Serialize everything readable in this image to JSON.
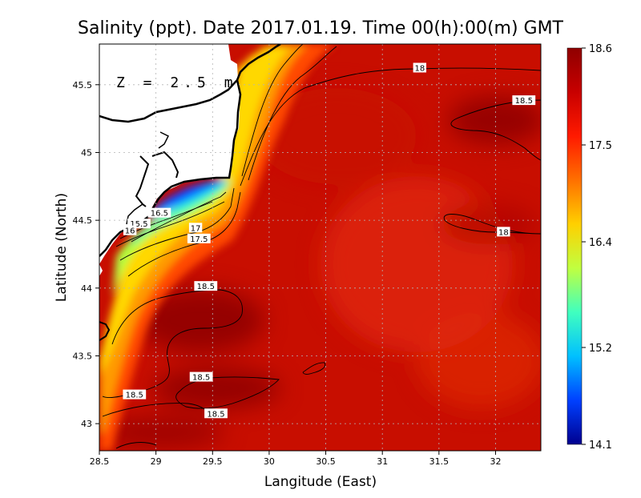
{
  "chart_data": {
    "type": "heatmap",
    "title": "Salinity (ppt). Date 2017.01.19. Time 00(h):00(m) GMT",
    "xlabel": "Langitude (East)",
    "ylabel": "Latitude (North)",
    "annotation": "Z = 2.5 m",
    "xlim": [
      28.5,
      32.4
    ],
    "ylim": [
      42.8,
      45.8
    ],
    "xticks": [
      "28.5",
      "29",
      "29.5",
      "30",
      "30.5",
      "31",
      "31.5",
      "32"
    ],
    "yticks": [
      "43",
      "43.5",
      "44",
      "44.5",
      "45",
      "45.5"
    ],
    "grid": true,
    "colorbar": {
      "min": 14.1,
      "max": 18.6,
      "ticks": [
        "14.1",
        "15.2",
        "16.4",
        "17.5",
        "18.6"
      ],
      "colormap": [
        "#00008f",
        "#0040ff",
        "#00c0ff",
        "#40ffbf",
        "#c0ff40",
        "#ffd000",
        "#ff7000",
        "#ff1a00",
        "#c80000",
        "#8f0000"
      ]
    },
    "contour_levels": [
      15.5,
      16,
      16.5,
      17,
      17.5,
      18,
      18.5
    ],
    "contour_labels": [
      {
        "text": "18",
        "lon": 31.33,
        "lat": 45.62
      },
      {
        "text": "18.5",
        "lon": 32.25,
        "lat": 45.38
      },
      {
        "text": "18",
        "lon": 32.07,
        "lat": 44.41
      },
      {
        "text": "16.5",
        "lon": 29.03,
        "lat": 44.55
      },
      {
        "text": "15.5",
        "lon": 28.85,
        "lat": 44.47
      },
      {
        "text": "16",
        "lon": 28.77,
        "lat": 44.42
      },
      {
        "text": "17",
        "lon": 29.35,
        "lat": 44.44
      },
      {
        "text": "17.5",
        "lon": 29.38,
        "lat": 44.36
      },
      {
        "text": "18.5",
        "lon": 29.44,
        "lat": 44.01
      },
      {
        "text": "18.5",
        "lon": 29.4,
        "lat": 43.34
      },
      {
        "text": "18.5",
        "lon": 28.81,
        "lat": 43.21
      },
      {
        "text": "18.5",
        "lon": 29.53,
        "lat": 43.07
      }
    ],
    "field_samples": [
      {
        "lon": 28.6,
        "lat": 43.0,
        "value": 18.45
      },
      {
        "lon": 29.4,
        "lat": 43.7,
        "value": 18.55
      },
      {
        "lon": 29.4,
        "lat": 43.2,
        "value": 18.55
      },
      {
        "lon": 30.5,
        "lat": 44.5,
        "value": 18.1
      },
      {
        "lon": 31.5,
        "lat": 45.0,
        "value": 18.05
      },
      {
        "lon": 32.2,
        "lat": 45.3,
        "value": 18.55
      },
      {
        "lon": 31.8,
        "lat": 44.5,
        "value": 17.95
      },
      {
        "lon": 29.1,
        "lat": 44.6,
        "value": 14.2
      },
      {
        "lon": 29.3,
        "lat": 44.7,
        "value": 15.2
      },
      {
        "lon": 29.6,
        "lat": 44.4,
        "value": 17.0
      },
      {
        "lon": 29.85,
        "lat": 45.6,
        "value": 17.0
      }
    ]
  }
}
